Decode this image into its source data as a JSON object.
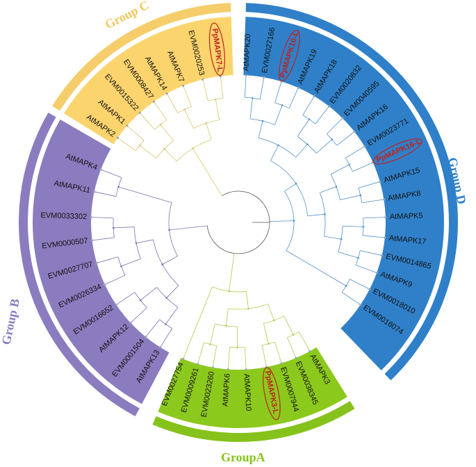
{
  "groups": [
    {
      "key": "C",
      "label": "Group C",
      "color": "#f5cd6a",
      "fill": "#fbd46e",
      "text_color": "#f2c65c",
      "start": -58,
      "end": -2
    },
    {
      "key": "D",
      "label": "Group D",
      "color": "#2f80c9",
      "fill": "#2f80c9",
      "text_color": "#2f80c9",
      "start": 2,
      "end": 136
    },
    {
      "key": "A",
      "label": "GroupA",
      "color": "#86c21c",
      "fill": "#8cc91d",
      "text_color": "#86c21c",
      "start": 148,
      "end": 203
    },
    {
      "key": "B",
      "label": "Group B",
      "color": "#8b7cbf",
      "fill": "#8b7cbf",
      "text_color": "#8b7cbf",
      "start": 208,
      "end": 300
    }
  ],
  "leaves": [
    {
      "label": "AtMAPK20",
      "group": "D",
      "angle": 3
    },
    {
      "label": "EVM0027166",
      "group": "D",
      "angle": 10
    },
    {
      "label": "PpMAPK10-L",
      "group": "D",
      "angle": 17,
      "highlight": true
    },
    {
      "label": "AtMAPK19",
      "group": "D",
      "angle": 24
    },
    {
      "label": "AtMAPK18",
      "group": "D",
      "angle": 31
    },
    {
      "label": "EVM0020832",
      "group": "D",
      "angle": 38
    },
    {
      "label": "EVM0040595",
      "group": "D",
      "angle": 45
    },
    {
      "label": "AtMAPK16",
      "group": "D",
      "angle": 52
    },
    {
      "label": "EVM0023771",
      "group": "D",
      "angle": 59
    },
    {
      "label": "PpMAPK16-L",
      "group": "D",
      "angle": 66,
      "highlight": true
    },
    {
      "label": "AtMAPK15",
      "group": "D",
      "angle": 74
    },
    {
      "label": "AtMAPK8",
      "group": "D",
      "angle": 81
    },
    {
      "label": "AtMAPK5",
      "group": "D",
      "angle": 88
    },
    {
      "label": "AtMAPK17",
      "group": "D",
      "angle": 96
    },
    {
      "label": "EVM0014865",
      "group": "D",
      "angle": 103
    },
    {
      "label": "AtMAPK9",
      "group": "D",
      "angle": 110
    },
    {
      "label": "EVM0018010",
      "group": "D",
      "angle": 117
    },
    {
      "label": "EVM0016074",
      "group": "D",
      "angle": 124
    },
    {
      "label": "AtMAPK3",
      "group": "A",
      "angle": 151
    },
    {
      "label": "EVM0038345",
      "group": "A",
      "angle": 157
    },
    {
      "label": "EVM0007944",
      "group": "A",
      "angle": 163
    },
    {
      "label": "PpMAPK3-L",
      "group": "A",
      "angle": 169,
      "highlight": true
    },
    {
      "label": "AtMAPK10",
      "group": "A",
      "angle": 177
    },
    {
      "label": "AtMAPK6",
      "group": "A",
      "angle": 184
    },
    {
      "label": "EVM0023260",
      "group": "A",
      "angle": 190
    },
    {
      "label": "EVM0009261",
      "group": "A",
      "angle": 196
    },
    {
      "label": "EVM0027754",
      "group": "A",
      "angle": 202
    },
    {
      "label": "AtMAPK13",
      "group": "B",
      "angle": 212
    },
    {
      "label": "EVM0001504",
      "group": "B",
      "angle": 219
    },
    {
      "label": "AtMAPK12",
      "group": "B",
      "angle": 227
    },
    {
      "label": "EVM0016652",
      "group": "B",
      "angle": 236
    },
    {
      "label": "EVM0026334",
      "group": "B",
      "angle": 245
    },
    {
      "label": "EVM0027707",
      "group": "B",
      "angle": 254
    },
    {
      "label": "EVM0000507",
      "group": "B",
      "angle": 263
    },
    {
      "label": "EVM0033302",
      "group": "B",
      "angle": 272
    },
    {
      "label": "AtMAPK11",
      "group": "B",
      "angle": 282
    },
    {
      "label": "AtMAPK4",
      "group": "B",
      "angle": 291
    },
    {
      "label": "AtMAPK2",
      "group": "C",
      "angle": -55
    },
    {
      "label": "AtMAPK1",
      "group": "C",
      "angle": -49
    },
    {
      "label": "EVM0015322",
      "group": "C",
      "angle": -42
    },
    {
      "label": "EVM0008427",
      "group": "C",
      "angle": -35
    },
    {
      "label": "AtMAPK14",
      "group": "C",
      "angle": -29
    },
    {
      "label": "AtMAPK7",
      "group": "C",
      "angle": -22
    },
    {
      "label": "EVM0020253",
      "group": "C",
      "angle": -14
    },
    {
      "label": "PpMAPK7-L",
      "group": "C",
      "angle": -7,
      "highlight": true
    }
  ]
}
